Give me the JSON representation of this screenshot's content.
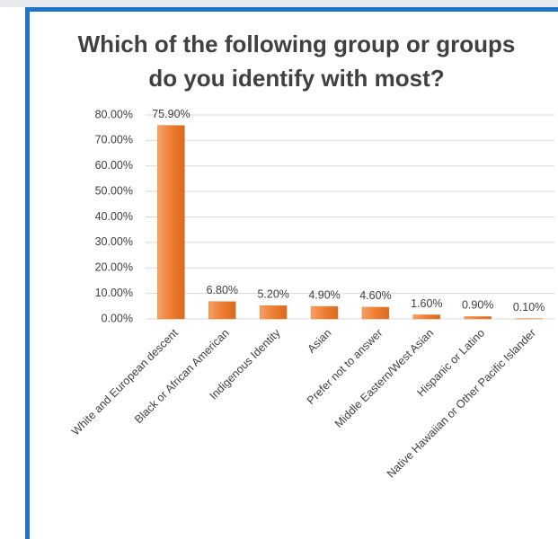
{
  "chart_data": {
    "type": "bar",
    "title": "Which of the following group or groups do you identify with most?",
    "categories": [
      "White and European descent",
      "Black or African American",
      "Indigenous Identity",
      "Asian",
      "Prefer not to answer",
      "Middle Eastern/West Asian",
      "Hispanic or Latino",
      "Native Hawaiian or Other Pacific Islander"
    ],
    "values": [
      75.9,
      6.8,
      5.2,
      4.9,
      4.6,
      1.6,
      0.9,
      0.1
    ],
    "value_labels": [
      "75.90%",
      "6.80%",
      "5.20%",
      "4.90%",
      "4.60%",
      "1.60%",
      "0.90%",
      "0.10%"
    ],
    "color": "#ed7d31",
    "ylim": [
      0,
      80
    ],
    "yticks": [
      {
        "value": 0,
        "label": "0.00%"
      },
      {
        "value": 10,
        "label": "10.00%"
      },
      {
        "value": 20,
        "label": "20.00%"
      },
      {
        "value": 30,
        "label": "30.00%"
      },
      {
        "value": 40,
        "label": "40.00%"
      },
      {
        "value": 50,
        "label": "50.00%"
      },
      {
        "value": 60,
        "label": "60.00%"
      },
      {
        "value": 70,
        "label": "70.00%"
      },
      {
        "value": 80,
        "label": "80.00%"
      }
    ],
    "grid": true
  }
}
